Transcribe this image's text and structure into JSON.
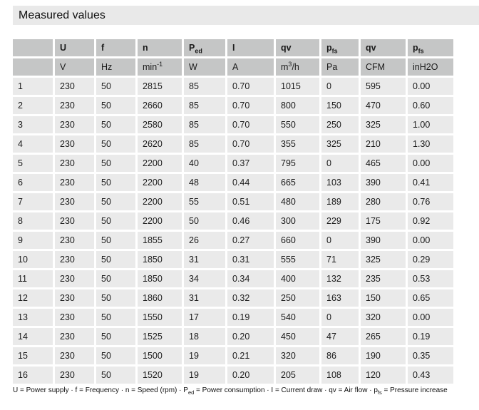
{
  "title": "Measured values",
  "colors": {
    "title_bar_bg": "#e9e9e9",
    "header_bg": "#c5c6c6",
    "cell_bg": "#eaeaea",
    "text": "#111111"
  },
  "table": {
    "header": [
      {
        "main": "",
        "sub": ""
      },
      {
        "main": "U",
        "sub": ""
      },
      {
        "main": "f",
        "sub": ""
      },
      {
        "main": "n",
        "sub": ""
      },
      {
        "main": "P",
        "sub": "ed"
      },
      {
        "main": "I",
        "sub": ""
      },
      {
        "main": "qv",
        "sub": ""
      },
      {
        "main": "p",
        "sub": "fs"
      },
      {
        "main": "qv",
        "sub": ""
      },
      {
        "main": "p",
        "sub": "fs"
      }
    ],
    "units": [
      {
        "pre": "",
        "sup": "",
        "post": ""
      },
      {
        "pre": "V",
        "sup": "",
        "post": ""
      },
      {
        "pre": "Hz",
        "sup": "",
        "post": ""
      },
      {
        "pre": "min",
        "sup": "-1",
        "post": ""
      },
      {
        "pre": "W",
        "sup": "",
        "post": ""
      },
      {
        "pre": "A",
        "sup": "",
        "post": ""
      },
      {
        "pre": "m",
        "sup": "3",
        "post": "/h"
      },
      {
        "pre": "Pa",
        "sup": "",
        "post": ""
      },
      {
        "pre": "CFM",
        "sup": "",
        "post": ""
      },
      {
        "pre": "inH2O",
        "sup": "",
        "post": ""
      }
    ],
    "rows": [
      [
        "1",
        "230",
        "50",
        "2815",
        "85",
        "0.70",
        "1015",
        "0",
        "595",
        "0.00"
      ],
      [
        "2",
        "230",
        "50",
        "2660",
        "85",
        "0.70",
        "800",
        "150",
        "470",
        "0.60"
      ],
      [
        "3",
        "230",
        "50",
        "2580",
        "85",
        "0.70",
        "550",
        "250",
        "325",
        "1.00"
      ],
      [
        "4",
        "230",
        "50",
        "2620",
        "85",
        "0.70",
        "355",
        "325",
        "210",
        "1.30"
      ],
      [
        "5",
        "230",
        "50",
        "2200",
        "40",
        "0.37",
        "795",
        "0",
        "465",
        "0.00"
      ],
      [
        "6",
        "230",
        "50",
        "2200",
        "48",
        "0.44",
        "665",
        "103",
        "390",
        "0.41"
      ],
      [
        "7",
        "230",
        "50",
        "2200",
        "55",
        "0.51",
        "480",
        "189",
        "280",
        "0.76"
      ],
      [
        "8",
        "230",
        "50",
        "2200",
        "50",
        "0.46",
        "300",
        "229",
        "175",
        "0.92"
      ],
      [
        "9",
        "230",
        "50",
        "1855",
        "26",
        "0.27",
        "660",
        "0",
        "390",
        "0.00"
      ],
      [
        "10",
        "230",
        "50",
        "1850",
        "31",
        "0.31",
        "555",
        "71",
        "325",
        "0.29"
      ],
      [
        "11",
        "230",
        "50",
        "1850",
        "34",
        "0.34",
        "400",
        "132",
        "235",
        "0.53"
      ],
      [
        "12",
        "230",
        "50",
        "1860",
        "31",
        "0.32",
        "250",
        "163",
        "150",
        "0.65"
      ],
      [
        "13",
        "230",
        "50",
        "1550",
        "17",
        "0.19",
        "540",
        "0",
        "320",
        "0.00"
      ],
      [
        "14",
        "230",
        "50",
        "1525",
        "18",
        "0.20",
        "450",
        "47",
        "265",
        "0.19"
      ],
      [
        "15",
        "230",
        "50",
        "1500",
        "19",
        "0.21",
        "320",
        "86",
        "190",
        "0.35"
      ],
      [
        "16",
        "230",
        "50",
        "1520",
        "19",
        "0.20",
        "205",
        "108",
        "120",
        "0.43"
      ]
    ]
  },
  "legend": {
    "segments": [
      {
        "text": "U = Power supply · f = Frequency · n = Speed (rpm) · P"
      },
      {
        "sub": "ed"
      },
      {
        "text": " = Power consumption · I = Current draw · qv = Air flow · p"
      },
      {
        "sub": "fs"
      },
      {
        "text": " = Pressure increase"
      }
    ]
  }
}
